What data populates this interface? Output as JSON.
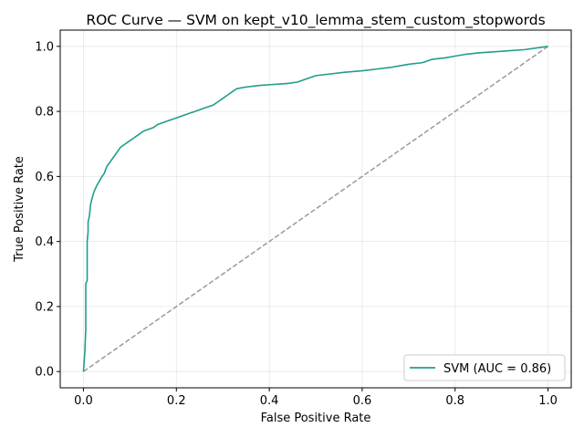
{
  "chart_data": {
    "type": "line",
    "title": "ROC Curve — SVM on kept_v10_lemma_stem_custom_stopwords",
    "xlabel": "False Positive Rate",
    "ylabel": "True Positive Rate",
    "xlim": [
      -0.05,
      1.05
    ],
    "ylim": [
      -0.05,
      1.05
    ],
    "xticks": [
      "0.0",
      "0.2",
      "0.4",
      "0.6",
      "0.8",
      "1.0"
    ],
    "yticks": [
      "0.0",
      "0.2",
      "0.4",
      "0.6",
      "0.8",
      "1.0"
    ],
    "grid": true,
    "legend_position": "lower-right",
    "series": [
      {
        "name": "SVM (AUC = 0.86)",
        "color": "#1f9e89",
        "x": [
          0.0,
          0.003,
          0.005,
          0.005,
          0.008,
          0.008,
          0.01,
          0.01,
          0.013,
          0.015,
          0.018,
          0.02,
          0.022,
          0.025,
          0.028,
          0.032,
          0.036,
          0.04,
          0.045,
          0.05,
          0.055,
          0.06,
          0.065,
          0.07,
          0.08,
          0.09,
          0.1,
          0.11,
          0.12,
          0.13,
          0.15,
          0.16,
          0.18,
          0.2,
          0.22,
          0.24,
          0.26,
          0.28,
          0.29,
          0.3,
          0.31,
          0.33,
          0.35,
          0.38,
          0.4,
          0.44,
          0.46,
          0.48,
          0.5,
          0.53,
          0.56,
          0.6,
          0.63,
          0.66,
          0.7,
          0.73,
          0.75,
          0.78,
          0.8,
          0.82,
          0.85,
          0.9,
          0.95,
          1.0
        ],
        "y": [
          0.0,
          0.06,
          0.13,
          0.27,
          0.28,
          0.4,
          0.43,
          0.46,
          0.48,
          0.51,
          0.53,
          0.54,
          0.55,
          0.56,
          0.57,
          0.58,
          0.59,
          0.6,
          0.61,
          0.63,
          0.64,
          0.65,
          0.66,
          0.67,
          0.69,
          0.7,
          0.71,
          0.72,
          0.73,
          0.74,
          0.75,
          0.76,
          0.77,
          0.78,
          0.79,
          0.8,
          0.81,
          0.82,
          0.83,
          0.84,
          0.85,
          0.87,
          0.875,
          0.88,
          0.882,
          0.886,
          0.89,
          0.9,
          0.91,
          0.915,
          0.92,
          0.925,
          0.93,
          0.935,
          0.945,
          0.95,
          0.96,
          0.965,
          0.97,
          0.975,
          0.98,
          0.985,
          0.99,
          1.0
        ]
      },
      {
        "color": "#999999",
        "dashed": true,
        "x": [
          0.0,
          1.0
        ],
        "y": [
          0.0,
          1.0
        ]
      }
    ]
  }
}
